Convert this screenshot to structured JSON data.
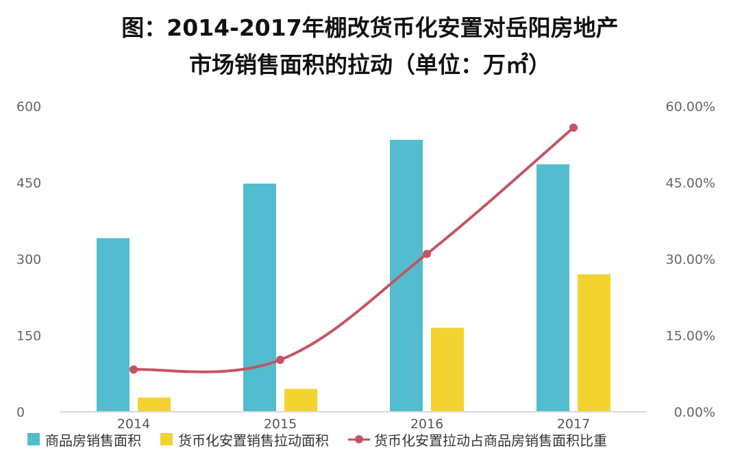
{
  "chart_data": {
    "type": "bar",
    "title": "图：2014-2017年棚改货币化安置对岳阳房地产",
    "subtitle": "市场销售面积的拉动（单位：万㎡）",
    "categories": [
      "2014",
      "2015",
      "2016",
      "2017"
    ],
    "series": [
      {
        "name": "商品房销售面积",
        "type": "bar",
        "axis": "left",
        "color": "#53bccf",
        "values": [
          341,
          448,
          534,
          486
        ]
      },
      {
        "name": "货币化安置销售拉动面积",
        "type": "bar",
        "axis": "left",
        "color": "#f2d32f",
        "values": [
          28,
          45,
          165,
          270
        ]
      },
      {
        "name": "货币化安置拉动占商品房销售面积比重",
        "type": "line",
        "axis": "right",
        "color": "#c65363",
        "values": [
          8.3,
          10.2,
          31.0,
          55.8
        ]
      }
    ],
    "y_left": {
      "min": 0,
      "max": 600,
      "ticks": [
        "0",
        "150",
        "300",
        "450",
        "600"
      ]
    },
    "y_right": {
      "min": 0,
      "max": 60,
      "ticks": [
        "0.00%",
        "15.00%",
        "30.00%",
        "45.00%",
        "60.00%"
      ]
    },
    "grid": false,
    "legend_position": "bottom"
  }
}
